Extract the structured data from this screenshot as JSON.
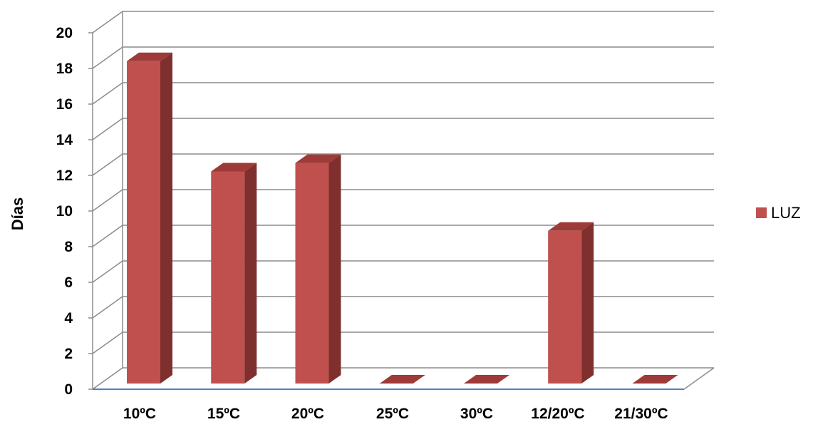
{
  "chart_data": {
    "type": "bar",
    "style": "3d-column",
    "categories": [
      "10ºC",
      "15ºC",
      "20ºC",
      "25ºC",
      "30ºC",
      "12/20ºC",
      "21/30ºC"
    ],
    "series": [
      {
        "name": "LUZ",
        "values": [
          19,
          12.5,
          13,
          0,
          0,
          9,
          0
        ]
      }
    ],
    "ylabel": "Días",
    "xlabel": "",
    "title": "",
    "ylim": [
      0,
      20
    ],
    "yticks": [
      "0",
      "2",
      "4",
      "6",
      "8",
      "10",
      "12",
      "14",
      "16",
      "18",
      "20"
    ],
    "grid": true,
    "legend_position": "right",
    "colors": {
      "bar_front": "#C0504D",
      "bar_top": "#9E3A37",
      "bar_side": "#7F2F2D",
      "grid": "#8C8C8C",
      "floor_axis": "#4F81BD"
    }
  }
}
